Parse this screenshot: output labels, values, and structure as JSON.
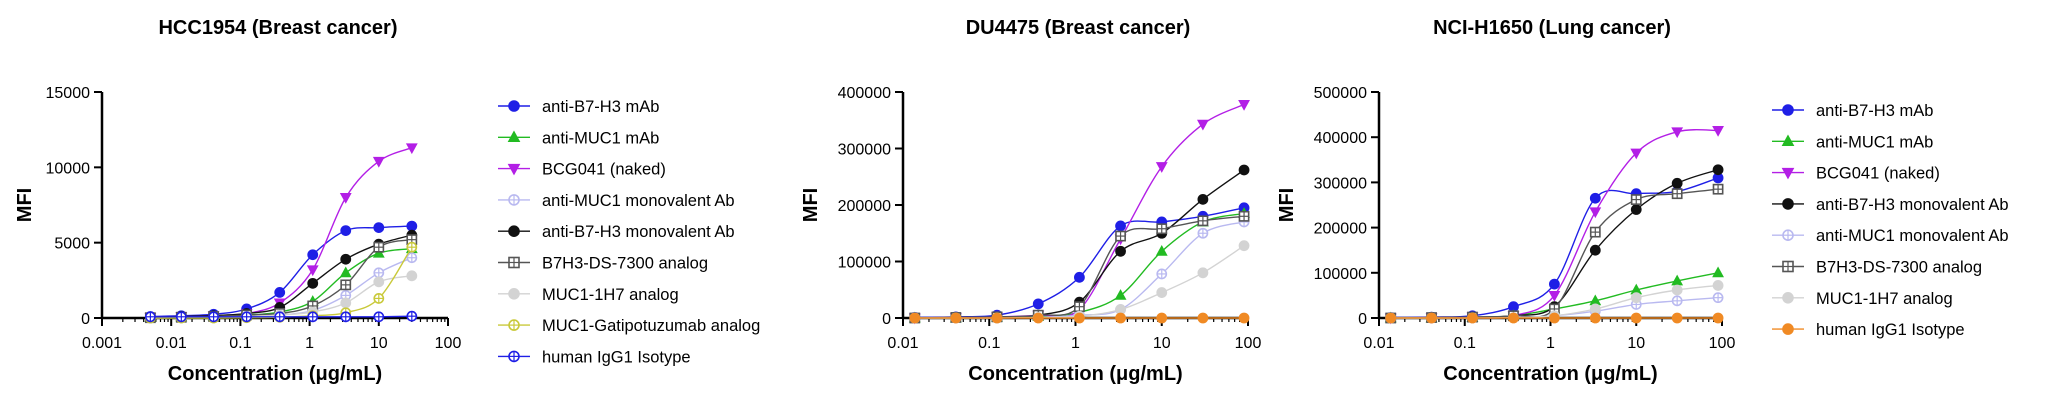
{
  "chart_data": [
    {
      "type": "scatter",
      "title": "HCC1954 (Breast cancer)",
      "xlabel": "Concentration (μg/mL)",
      "ylabel": "MFI",
      "x_scale": "log",
      "xlim": [
        0.001,
        100
      ],
      "ylim": [
        0,
        15000
      ],
      "x_ticks": [
        "0.001",
        "0.01",
        "0.1",
        "1",
        "10",
        "100"
      ],
      "y_ticks": [
        "0",
        "5000",
        "10000",
        "15000"
      ],
      "legend_position": "right",
      "grid": false,
      "x": [
        0.005,
        0.014,
        0.041,
        0.123,
        0.37,
        1.11,
        3.33,
        10,
        30
      ],
      "series": [
        {
          "name": "anti-B7-H3 mAb",
          "color": "#1f1fe6",
          "marker": "circle",
          "fill": "filled",
          "values": [
            100,
            150,
            250,
            600,
            1700,
            4200,
            5800,
            6000,
            6100
          ]
        },
        {
          "name": "anti-MUC1 mAb",
          "color": "#22bb22",
          "marker": "triangle-up",
          "fill": "filled",
          "values": [
            50,
            80,
            120,
            200,
            400,
            1100,
            3000,
            4300,
            4600
          ]
        },
        {
          "name": "BCG041 (naked)",
          "color": "#b31fe6",
          "marker": "triangle-down",
          "fill": "filled",
          "values": [
            50,
            100,
            150,
            300,
            1000,
            3200,
            8000,
            10400,
            11300
          ]
        },
        {
          "name": "anti-MUC1 monovalent Ab",
          "color": "#b9b9f0",
          "marker": "circle",
          "fill": "open-cross",
          "values": [
            0,
            20,
            50,
            100,
            200,
            500,
            1500,
            3000,
            4000
          ]
        },
        {
          "name": "anti-B7-H3 monovalent Ab",
          "color": "#111111",
          "marker": "circle",
          "fill": "filled",
          "values": [
            50,
            100,
            150,
            300,
            700,
            2300,
            3900,
            4900,
            5500
          ]
        },
        {
          "name": "B7H3-DS-7300 analog",
          "color": "#555555",
          "marker": "square",
          "fill": "open-cross",
          "values": [
            20,
            50,
            100,
            200,
            300,
            800,
            2200,
            4700,
            5200
          ]
        },
        {
          "name": "MUC1-1H7 analog",
          "color": "#d3d3d3",
          "marker": "circle",
          "fill": "filled",
          "values": [
            0,
            20,
            50,
            100,
            200,
            400,
            1000,
            2400,
            2800
          ]
        },
        {
          "name": "MUC1-Gatipotuzumab analog",
          "color": "#c9c93a",
          "marker": "circle",
          "fill": "open-cross",
          "values": [
            0,
            0,
            0,
            20,
            50,
            150,
            350,
            1300,
            4700
          ]
        },
        {
          "name": "human IgG1 Isotype",
          "color": "#1f1fe6",
          "marker": "circle",
          "fill": "open-cross",
          "values": [
            80,
            80,
            80,
            80,
            80,
            80,
            80,
            80,
            120
          ]
        }
      ]
    },
    {
      "type": "scatter",
      "title": "DU4475 (Breast cancer)",
      "xlabel": "Concentration (μg/mL)",
      "ylabel": "MFI",
      "x_scale": "log",
      "xlim": [
        0.01,
        100
      ],
      "ylim": [
        0,
        400000
      ],
      "x_ticks": [
        "0.01",
        "0.1",
        "1",
        "10",
        "100"
      ],
      "y_ticks": [
        "0",
        "100000",
        "200000",
        "300000",
        "400000"
      ],
      "legend_position": "none",
      "grid": false,
      "x": [
        0.0137,
        0.041,
        0.123,
        0.37,
        1.11,
        3.33,
        10,
        30,
        90
      ],
      "series": [
        {
          "name": "anti-B7-H3 mAb",
          "color": "#1f1fe6",
          "marker": "circle",
          "fill": "filled",
          "values": [
            1000,
            2000,
            5000,
            25000,
            72000,
            163000,
            170000,
            180000,
            195000
          ]
        },
        {
          "name": "anti-MUC1 mAb",
          "color": "#22bb22",
          "marker": "triangle-up",
          "fill": "filled",
          "values": [
            0,
            0,
            1000,
            3000,
            10000,
            40000,
            118000,
            170000,
            185000
          ]
        },
        {
          "name": "BCG041 (naked)",
          "color": "#b31fe6",
          "marker": "triangle-down",
          "fill": "filled",
          "values": [
            0,
            1000,
            2000,
            5000,
            15000,
            140000,
            268000,
            343000,
            378000
          ]
        },
        {
          "name": "anti-MUC1 monovalent Ab",
          "color": "#b9b9f0",
          "marker": "circle",
          "fill": "open-cross",
          "values": [
            0,
            0,
            0,
            1000,
            5000,
            15000,
            78000,
            150000,
            170000
          ]
        },
        {
          "name": "anti-B7-H3 monovalent Ab",
          "color": "#111111",
          "marker": "circle",
          "fill": "filled",
          "values": [
            0,
            1000,
            2000,
            5000,
            28000,
            118000,
            150000,
            210000,
            262000
          ]
        },
        {
          "name": "B7H3-DS-7300 analog",
          "color": "#555555",
          "marker": "square",
          "fill": "open-cross",
          "values": [
            0,
            1000,
            2000,
            5000,
            20000,
            145000,
            158000,
            172000,
            180000
          ]
        },
        {
          "name": "MUC1-1H7 analog",
          "color": "#d3d3d3",
          "marker": "circle",
          "fill": "filled",
          "values": [
            0,
            0,
            0,
            1000,
            3000,
            15000,
            45000,
            80000,
            128000
          ]
        },
        {
          "name": "human IgG1 Isotype",
          "color": "#f08a24",
          "marker": "circle",
          "fill": "filled",
          "values": [
            0,
            0,
            0,
            0,
            0,
            0,
            0,
            0,
            0
          ]
        }
      ]
    },
    {
      "type": "scatter",
      "title": "NCI-H1650 (Lung cancer)",
      "xlabel": "Concentration (μg/mL)",
      "ylabel": "MFI",
      "x_scale": "log",
      "xlim": [
        0.01,
        100
      ],
      "ylim": [
        0,
        500000
      ],
      "x_ticks": [
        "0.01",
        "0.1",
        "1",
        "10",
        "100"
      ],
      "y_ticks": [
        "0",
        "100000",
        "200000",
        "300000",
        "400000",
        "500000"
      ],
      "legend_position": "right",
      "grid": false,
      "x": [
        0.0137,
        0.041,
        0.123,
        0.37,
        1.11,
        3.33,
        10,
        30,
        90
      ],
      "series": [
        {
          "name": "anti-B7-H3 mAb",
          "color": "#1f1fe6",
          "marker": "circle",
          "fill": "filled",
          "values": [
            1000,
            2000,
            5000,
            25000,
            75000,
            265000,
            275000,
            280000,
            310000
          ]
        },
        {
          "name": "anti-MUC1 mAb",
          "color": "#22bb22",
          "marker": "triangle-up",
          "fill": "filled",
          "values": [
            0,
            0,
            1000,
            5000,
            20000,
            38000,
            62000,
            82000,
            100000
          ]
        },
        {
          "name": "BCG041 (naked)",
          "color": "#b31fe6",
          "marker": "triangle-down",
          "fill": "filled",
          "values": [
            0,
            1000,
            2000,
            5000,
            50000,
            235000,
            365000,
            412000,
            415000
          ]
        },
        {
          "name": "anti-B7-H3 monovalent Ab",
          "color": "#111111",
          "marker": "circle",
          "fill": "filled",
          "values": [
            0,
            1000,
            2000,
            5000,
            25000,
            150000,
            240000,
            298000,
            328000
          ]
        },
        {
          "name": "anti-MUC1 monovalent Ab",
          "color": "#b9b9f0",
          "marker": "circle",
          "fill": "open-cross",
          "values": [
            0,
            0,
            0,
            1000,
            5000,
            15000,
            30000,
            38000,
            45000
          ]
        },
        {
          "name": "B7H3-DS-7300 analog",
          "color": "#555555",
          "marker": "square",
          "fill": "open-cross",
          "values": [
            0,
            1000,
            2000,
            5000,
            20000,
            190000,
            262000,
            275000,
            285000
          ]
        },
        {
          "name": "MUC1-1H7 analog",
          "color": "#d3d3d3",
          "marker": "circle",
          "fill": "filled",
          "values": [
            0,
            0,
            0,
            1000,
            5000,
            20000,
            45000,
            62000,
            72000
          ]
        },
        {
          "name": "human IgG1 Isotype",
          "color": "#f08a24",
          "marker": "circle",
          "fill": "filled",
          "values": [
            0,
            0,
            0,
            0,
            0,
            0,
            0,
            0,
            0
          ]
        }
      ]
    }
  ]
}
